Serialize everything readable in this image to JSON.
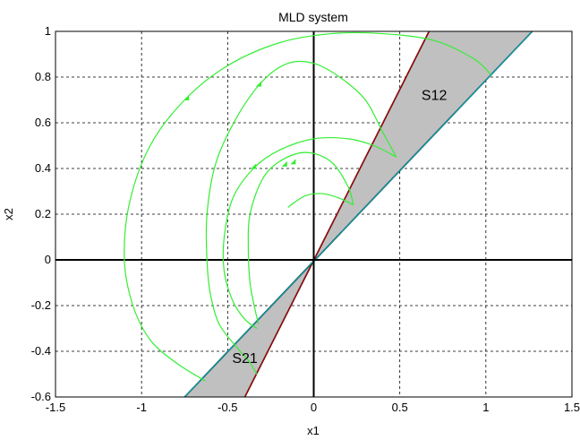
{
  "chart_data": {
    "type": "line",
    "title": "MLD system",
    "xlabel": "x1",
    "ylabel": "x2",
    "xlim": [
      -1.5,
      1.5
    ],
    "ylim": [
      -0.6,
      1.0
    ],
    "xticks": [
      -1.5,
      -1,
      -0.5,
      0,
      0.5,
      1,
      1.5
    ],
    "xtick_labels": [
      "-1.5",
      "-1",
      "-0.5",
      "0",
      "0.5",
      "1",
      "1.5"
    ],
    "yticks": [
      -0.6,
      -0.4,
      -0.2,
      0,
      0.2,
      0.4,
      0.6,
      0.8,
      1.0
    ],
    "ytick_labels": [
      "-0.6",
      "-0.4",
      "-0.2",
      "0",
      "0.2",
      "0.4",
      "0.6",
      "0.8",
      "1"
    ],
    "grid": true,
    "regions": [
      {
        "label": "S12",
        "label_at": [
          0.7,
          0.7
        ],
        "polygon": [
          [
            0,
            0
          ],
          [
            0.67,
            1.0
          ],
          [
            1.27,
            1.0
          ]
        ]
      },
      {
        "label": "S21",
        "label_at": [
          -0.4,
          -0.45
        ],
        "polygon": [
          [
            0,
            0
          ],
          [
            -0.4,
            -0.6
          ],
          [
            -0.75,
            -0.6
          ]
        ]
      }
    ],
    "boundary_lines": [
      {
        "color": "#cc0000",
        "points": [
          [
            -0.4,
            -0.6
          ],
          [
            0.67,
            1.0
          ]
        ]
      },
      {
        "color": "#00bbcc",
        "points": [
          [
            -0.75,
            -0.6
          ],
          [
            1.27,
            1.0
          ]
        ]
      }
    ],
    "trajectory_color": "#33ee33",
    "trajectories": [
      [
        [
          1.03,
          0.81
        ],
        [
          0.93,
          0.88
        ],
        [
          0.7,
          0.96
        ],
        [
          0.4,
          0.99
        ],
        [
          0.1,
          0.99
        ],
        [
          -0.2,
          0.95
        ],
        [
          -0.5,
          0.85
        ],
        [
          -0.75,
          0.7
        ],
        [
          -0.95,
          0.5
        ],
        [
          -1.07,
          0.25
        ],
        [
          -1.1,
          0.0
        ],
        [
          -1.05,
          -0.2
        ],
        [
          -0.95,
          -0.35
        ],
        [
          -0.8,
          -0.45
        ],
        [
          -0.63,
          -0.53
        ]
      ],
      [
        [
          0.48,
          0.45
        ],
        [
          0.4,
          0.56
        ],
        [
          0.3,
          0.7
        ],
        [
          0.15,
          0.8
        ],
        [
          0.0,
          0.86
        ],
        [
          -0.15,
          0.86
        ],
        [
          -0.3,
          0.78
        ],
        [
          -0.45,
          0.62
        ],
        [
          -0.57,
          0.42
        ],
        [
          -0.62,
          0.2
        ],
        [
          -0.62,
          0.0
        ],
        [
          -0.6,
          -0.15
        ],
        [
          -0.55,
          -0.28
        ],
        [
          -0.45,
          -0.38
        ],
        [
          -0.38,
          -0.44
        ],
        [
          -0.33,
          -0.5
        ]
      ],
      [
        [
          0.48,
          0.45
        ],
        [
          0.35,
          0.5
        ],
        [
          0.2,
          0.53
        ],
        [
          0.0,
          0.53
        ],
        [
          -0.2,
          0.48
        ],
        [
          -0.35,
          0.4
        ],
        [
          -0.47,
          0.27
        ],
        [
          -0.52,
          0.1
        ],
        [
          -0.52,
          -0.05
        ],
        [
          -0.47,
          -0.18
        ],
        [
          -0.4,
          -0.26
        ],
        [
          -0.33,
          -0.3
        ]
      ],
      [
        [
          0.23,
          0.24
        ],
        [
          0.2,
          0.32
        ],
        [
          0.1,
          0.43
        ],
        [
          -0.05,
          0.47
        ],
        [
          -0.2,
          0.43
        ],
        [
          -0.3,
          0.35
        ],
        [
          -0.37,
          0.2
        ],
        [
          -0.38,
          0.05
        ],
        [
          -0.37,
          -0.1
        ],
        [
          -0.34,
          -0.22
        ],
        [
          -0.32,
          -0.28
        ]
      ],
      [
        [
          -0.15,
          0.23
        ],
        [
          -0.05,
          0.28
        ],
        [
          0.05,
          0.29
        ],
        [
          0.15,
          0.27
        ],
        [
          0.23,
          0.24
        ]
      ]
    ],
    "arrowheads": [
      [
        -0.74,
        0.71
      ],
      [
        -0.17,
        0.42
      ],
      [
        -0.32,
        0.77
      ],
      [
        -0.35,
        0.41
      ],
      [
        -0.12,
        0.43
      ]
    ]
  }
}
